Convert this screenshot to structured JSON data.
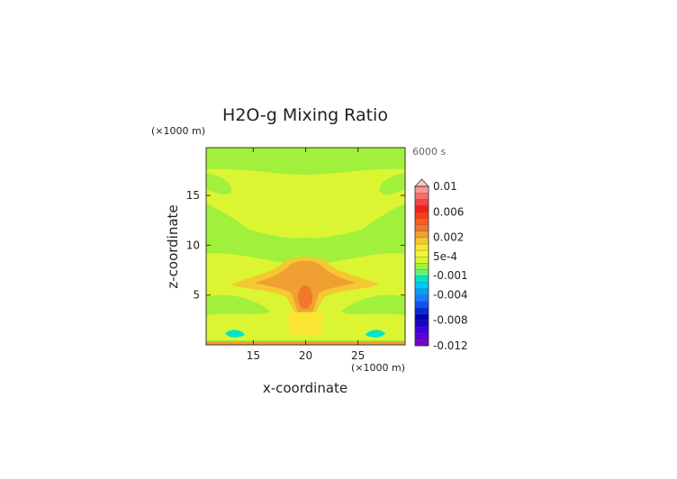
{
  "chart_data": {
    "type": "heatmap",
    "title": "H2O-g Mixing Ratio",
    "time_label": "6000 s",
    "xlabel": "x-coordinate",
    "ylabel": "z-coordinate",
    "x_unit": "(×1000 m)",
    "y_unit": "(×1000 m)",
    "xlim": [
      10.5,
      29.5
    ],
    "ylim": [
      0,
      19.8
    ],
    "x_ticks": [
      15,
      20,
      25
    ],
    "y_ticks": [
      5,
      10,
      15
    ],
    "colorbar": {
      "levels": [
        -0.012,
        -0.011,
        -0.01,
        -0.009,
        -0.008,
        -0.007,
        -0.006,
        -0.005,
        -0.004,
        -0.003,
        -0.002,
        -0.001,
        -0.0005,
        0,
        0.0005,
        0.001,
        0.0015,
        0.002,
        0.003,
        0.004,
        0.005,
        0.006,
        0.007,
        0.008,
        0.009,
        0.01
      ],
      "colors": [
        "#7d00c8",
        "#5a00d2",
        "#3c00dc",
        "#1e00c8",
        "#0000b4",
        "#0a28d2",
        "#1450f0",
        "#1e78ff",
        "#00a0ff",
        "#00c8ff",
        "#00e6c8",
        "#64f07d",
        "#a0f03c",
        "#dcf532",
        "#f5f532",
        "#fae632",
        "#f5c832",
        "#f0a032",
        "#f07828",
        "#ff5a1e",
        "#ff3c14",
        "#f01e1e",
        "#f04646",
        "#f56e6e",
        "#fa9696"
      ],
      "over_color": "#fac8c8",
      "tick_labels": [
        {
          "label": "0.01",
          "value": 0.01
        },
        {
          "label": "0.006",
          "value": 0.006
        },
        {
          "label": "0.002",
          "value": 0.002
        },
        {
          "label": "5e-4",
          "value": 0.0005
        },
        {
          "label": "-0.001",
          "value": -0.001
        },
        {
          "label": "-0.004",
          "value": -0.004
        },
        {
          "label": "-0.008",
          "value": -0.008
        },
        {
          "label": "-0.012",
          "value": -0.012
        }
      ]
    }
  }
}
